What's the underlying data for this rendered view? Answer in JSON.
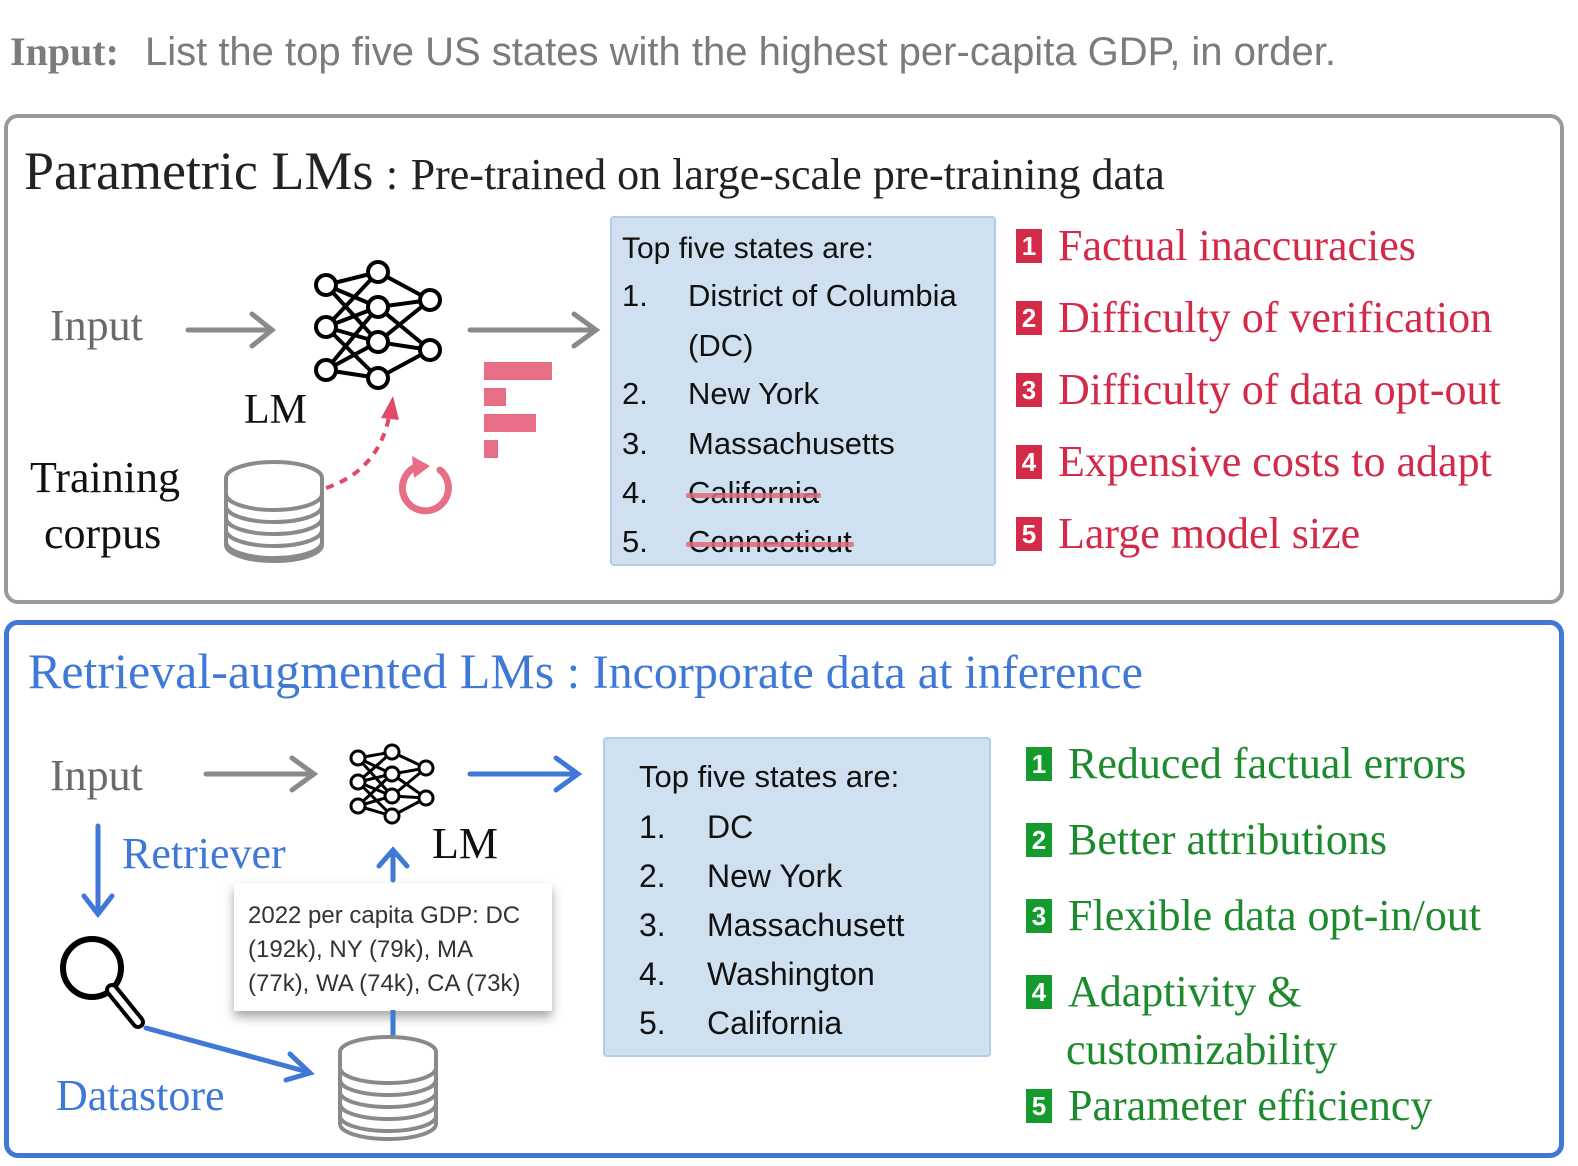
{
  "input_line": {
    "label": "Input:",
    "text": "List the top five US states with the highest per-capita GDP, in order."
  },
  "parametric": {
    "heading_title": "Parametric LMs",
    "heading_sep": ":",
    "heading_desc": "Pre-trained  on large-scale pre-training data",
    "input_label": "Input",
    "lm_label": "LM",
    "corpus_label_line1": "Training",
    "corpus_label_line2": "corpus",
    "answer": {
      "title": "Top five states are:",
      "items": [
        {
          "num": "1.",
          "text": "District of Columbia",
          "cont": "(DC)",
          "struck": false
        },
        {
          "num": "2.",
          "text": "New York",
          "struck": false
        },
        {
          "num": "3.",
          "text": "Massachusetts",
          "struck": false
        },
        {
          "num": "4.",
          "text": "California",
          "struck": true
        },
        {
          "num": "5.",
          "text": "Connecticut",
          "struck": true
        }
      ]
    },
    "issues": [
      {
        "badge": "1",
        "text": "Factual inaccuracies"
      },
      {
        "badge": "2",
        "text": "Difficulty of verification"
      },
      {
        "badge": "3",
        "text": "Difficulty of data opt-out"
      },
      {
        "badge": "4",
        "text": "Expensive costs to adapt"
      },
      {
        "badge": "5",
        "text": "Large model size"
      }
    ]
  },
  "retrieval": {
    "heading_title": "Retrieval-augmented LMs",
    "heading_sep": ":",
    "heading_desc": "Incorporate data at inference",
    "input_label": "Input",
    "retriever_label": "Retriever",
    "lm_label": "LM",
    "datastore_label": "Datastore",
    "retrieved_doc": "2022 per capita GDP: DC (192k), NY (79k), MA (77k), WA (74k), CA (73k)",
    "answer": {
      "title": "Top five states are:",
      "items": [
        {
          "num": "1.",
          "text": "DC"
        },
        {
          "num": "2.",
          "text": "New York"
        },
        {
          "num": "3.",
          "text": "Massachusett"
        },
        {
          "num": "4.",
          "text": "Washington"
        },
        {
          "num": "5.",
          "text": "California"
        }
      ]
    },
    "benefits": [
      {
        "badge": "1",
        "text": "Reduced factual errors"
      },
      {
        "badge": "2",
        "text": "Better attributions"
      },
      {
        "badge": "3",
        "text": "Flexible data opt-in/out"
      },
      {
        "badge": "4",
        "text": "Adaptivity &",
        "cont": "customizability"
      },
      {
        "badge": "5",
        "text": "Parameter efficiency"
      }
    ]
  },
  "colors": {
    "red": "#d32a4a",
    "green": "#1e8a2e",
    "blue": "#3f78d6",
    "answer_bg": "#cfe1f0",
    "gray_border": "#9a9a9a"
  },
  "icons": [
    "neural-network-icon",
    "database-icon",
    "refresh-icon",
    "pink-bars-icon",
    "magnifier-icon"
  ]
}
